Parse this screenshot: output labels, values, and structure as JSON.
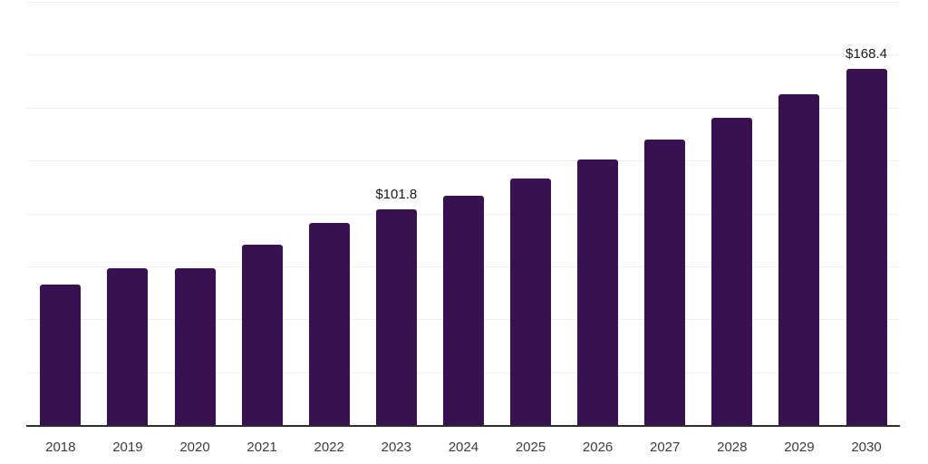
{
  "chart_data": {
    "type": "bar",
    "title": "",
    "xlabel": "",
    "ylabel": "",
    "categories": [
      "2018",
      "2019",
      "2020",
      "2021",
      "2022",
      "2023",
      "2024",
      "2025",
      "2026",
      "2027",
      "2028",
      "2029",
      "2030"
    ],
    "values": [
      66.6,
      74.3,
      74.2,
      85.1,
      95.5,
      101.8,
      108.3,
      116.5,
      125.4,
      134.8,
      145.1,
      156.2,
      168.4
    ],
    "point_labels": {
      "2023": "$101.8",
      "2030": "$168.4"
    },
    "ylim": [
      0,
      200
    ],
    "grid_step": 25,
    "grid": true,
    "legend": false,
    "colors": {
      "bar": "#371150",
      "gridline": "#f0f0f1",
      "axis_line": "#2e2e2e",
      "tick_label": "#3d3d3d",
      "value_label": "#1a1a1a",
      "background": "#ffffff"
    }
  }
}
